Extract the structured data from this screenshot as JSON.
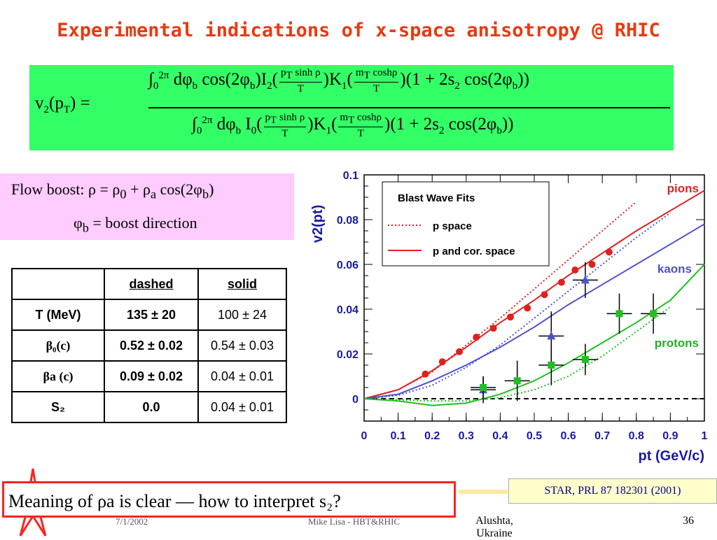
{
  "title": "Experimental indications of x-space anisotropy @ RHIC",
  "formula": {
    "lhs": "v₂(pₜ) =",
    "numerator": "∫₀²ᵖ dφb cos(2φb) I₂(pT sinhρ / T) K₁(mT coshρ / T) (1 + 2s₂ cos(2φb))",
    "denominator": "∫₀²ᵖ dφb I₀(pT sinhρ / T) K₁(mT coshρ / T) (1 + 2s₂ cos(2φb))"
  },
  "flow": {
    "label": "Flow boost:",
    "eq": "ρ = ρ₀ + ρa cos(2φb)",
    "phi_def": "φb = boost direction"
  },
  "table": {
    "headers": [
      "",
      "dashed",
      "solid"
    ],
    "rows": [
      [
        "T (MeV)",
        "135 ± 20",
        "100 ± 24"
      ],
      [
        "β₀(c)",
        "0.52 ± 0.02",
        "0.54 ± 0.03"
      ],
      [
        "βa (c)",
        "0.09 ± 0.02",
        "0.04 ± 0.01"
      ],
      [
        "S₂",
        "0.0",
        "0.04 ± 0.01"
      ]
    ]
  },
  "chart_data": {
    "type": "scatter",
    "xlabel": "pt (GeV/c)",
    "ylabel": "v2(pt)",
    "xlim": [
      0,
      1
    ],
    "ylim": [
      -0.01,
      0.1
    ],
    "xticks": [
      "0",
      "0.1",
      "0.2",
      "0.3",
      "0.4",
      "0.5",
      "0.6",
      "0.7",
      "0.8",
      "0.9",
      "1"
    ],
    "yticks": [
      "0",
      "0.02",
      "0.04",
      "0.06",
      "0.08",
      "0.1"
    ],
    "legend": {
      "title": "Blast Wave Fits",
      "entries": [
        "p space",
        "p and cor. space"
      ],
      "placement": "top-left"
    },
    "species_labels": [
      {
        "text": "pions",
        "color": "#e02020"
      },
      {
        "text": "kaons",
        "color": "#5050d0"
      },
      {
        "text": "protons",
        "color": "#20b020"
      }
    ],
    "series": [
      {
        "name": "pions",
        "color": "#e02020",
        "marker": "circle",
        "x": [
          0.18,
          0.23,
          0.28,
          0.33,
          0.38,
          0.43,
          0.48,
          0.53,
          0.58,
          0.62,
          0.67,
          0.72
        ],
        "y": [
          0.011,
          0.0165,
          0.021,
          0.0275,
          0.0315,
          0.0365,
          0.0405,
          0.0465,
          0.052,
          0.0575,
          0.06,
          0.0655
        ]
      },
      {
        "name": "kaons",
        "color": "#5050d0",
        "marker": "triangle",
        "x": [
          0.35,
          0.55,
          0.65
        ],
        "y": [
          0.004,
          0.028,
          0.053
        ],
        "yerr": [
          0.006,
          0.011,
          0.008
        ]
      },
      {
        "name": "protons",
        "color": "#20c020",
        "marker": "square",
        "x": [
          0.35,
          0.45,
          0.55,
          0.65,
          0.75,
          0.85
        ],
        "y": [
          0.005,
          0.008,
          0.015,
          0.0175,
          0.038,
          0.038
        ],
        "yerr": [
          0.005,
          0.009,
          0.009,
          0.007,
          0.009,
          0.009
        ]
      }
    ],
    "curves": [
      {
        "name": "pions p space",
        "style": "dotted",
        "color": "#e02020",
        "x": [
          0,
          0.1,
          0.2,
          0.3,
          0.4,
          0.5,
          0.6,
          0.7,
          0.8
        ],
        "y": [
          0,
          0.004,
          0.012,
          0.024,
          0.036,
          0.049,
          0.062,
          0.075,
          0.088
        ]
      },
      {
        "name": "pions p and cor. space",
        "style": "solid",
        "color": "#e02020",
        "x": [
          0,
          0.1,
          0.2,
          0.3,
          0.4,
          0.5,
          0.6,
          0.7,
          0.8,
          0.9,
          1.0
        ],
        "y": [
          0,
          0.004,
          0.0125,
          0.023,
          0.034,
          0.044,
          0.055,
          0.065,
          0.075,
          0.084,
          0.093
        ]
      },
      {
        "name": "kaons p space",
        "style": "dotted",
        "color": "#5050d0",
        "x": [
          0,
          0.1,
          0.2,
          0.3,
          0.4,
          0.5,
          0.6,
          0.7,
          0.8,
          0.9
        ],
        "y": [
          0,
          0.0015,
          0.006,
          0.014,
          0.024,
          0.036,
          0.048,
          0.06,
          0.072,
          0.083
        ]
      },
      {
        "name": "kaons p and cor. space",
        "style": "solid",
        "color": "#5050d0",
        "x": [
          0,
          0.1,
          0.2,
          0.3,
          0.4,
          0.5,
          0.6,
          0.7,
          0.8,
          0.9,
          1.0
        ],
        "y": [
          0,
          0.002,
          0.008,
          0.015,
          0.023,
          0.032,
          0.042,
          0.051,
          0.06,
          0.069,
          0.078
        ]
      },
      {
        "name": "protons p space",
        "style": "dotted",
        "color": "#20c020",
        "x": [
          0,
          0.1,
          0.2,
          0.3,
          0.4,
          0.5,
          0.6,
          0.7,
          0.8,
          0.9
        ],
        "y": [
          0,
          -0.0005,
          -0.001,
          -0.001,
          0.0005,
          0.004,
          0.01,
          0.019,
          0.03,
          0.041
        ]
      },
      {
        "name": "protons p and cor. space",
        "style": "solid",
        "color": "#20c020",
        "x": [
          0,
          0.1,
          0.2,
          0.3,
          0.4,
          0.5,
          0.6,
          0.7,
          0.8,
          0.9,
          1.0
        ],
        "y": [
          0,
          -0.001,
          -0.003,
          -0.002,
          0.002,
          0.008,
          0.016,
          0.025,
          0.034,
          0.044,
          0.06
        ]
      }
    ]
  },
  "reference": "STAR, PRL 87 182301 (2001)",
  "question": "Meaning of ρa is clear — how to interpret s₂?",
  "footer": {
    "date": "7/1/2002",
    "middle": "Mike Lisa - HBT&RHIC",
    "location": "Alushta, Ukraine",
    "page": "36"
  }
}
